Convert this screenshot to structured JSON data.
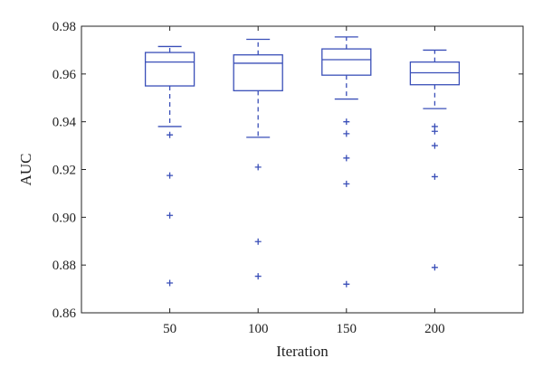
{
  "chart_data": {
    "type": "boxplot",
    "title": "",
    "xlabel": "Iteration",
    "ylabel": "AUC",
    "ylim": [
      0.86,
      0.98
    ],
    "yticks": [
      "0.86",
      "0.88",
      "0.90",
      "0.92",
      "0.94",
      "0.96",
      "0.98"
    ],
    "categories": [
      "50",
      "100",
      "150",
      "200"
    ],
    "grid": false,
    "legend": "none",
    "colors": {
      "box": "#3a4fb8",
      "outlier": "#3a4fb8",
      "axis": "#222222"
    },
    "boxes": [
      {
        "category": "50",
        "whisker_low": 0.938,
        "q1": 0.955,
        "median": 0.965,
        "q3": 0.969,
        "whisker_high": 0.9715,
        "outliers": [
          0.9345,
          0.9175,
          0.9008,
          0.8725
        ]
      },
      {
        "category": "100",
        "whisker_low": 0.9335,
        "q1": 0.953,
        "median": 0.9645,
        "q3": 0.968,
        "whisker_high": 0.9745,
        "outliers": [
          0.921,
          0.8898,
          0.8753
        ]
      },
      {
        "category": "150",
        "whisker_low": 0.9495,
        "q1": 0.9595,
        "median": 0.966,
        "q3": 0.9705,
        "whisker_high": 0.9755,
        "outliers": [
          0.94,
          0.935,
          0.9248,
          0.914,
          0.872
        ]
      },
      {
        "category": "200",
        "whisker_low": 0.9455,
        "q1": 0.9555,
        "median": 0.9605,
        "q3": 0.965,
        "whisker_high": 0.97,
        "outliers": [
          0.938,
          0.936,
          0.93,
          0.917,
          0.879
        ]
      }
    ]
  }
}
